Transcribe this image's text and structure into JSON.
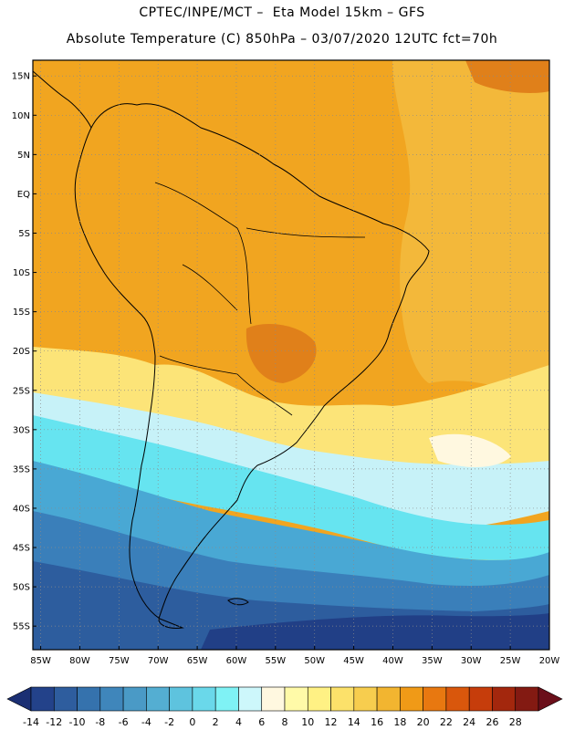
{
  "title": {
    "line1": "CPTEC/INPE/MCT –  Eta Model 15km – GFS",
    "line2": "Absolute Temperature (C) 850hPa – 03/07/2020 12UTC fct=70h"
  },
  "map": {
    "lon_range": [
      -86,
      -20
    ],
    "lat_range": [
      -58,
      17
    ],
    "lat_ticks": [
      {
        "value": 15,
        "label": "15N"
      },
      {
        "value": 10,
        "label": "10N"
      },
      {
        "value": 5,
        "label": "5N"
      },
      {
        "value": 0,
        "label": "EQ"
      },
      {
        "value": -5,
        "label": "5S"
      },
      {
        "value": -10,
        "label": "10S"
      },
      {
        "value": -15,
        "label": "15S"
      },
      {
        "value": -20,
        "label": "20S"
      },
      {
        "value": -25,
        "label": "25S"
      },
      {
        "value": -30,
        "label": "30S"
      },
      {
        "value": -35,
        "label": "35S"
      },
      {
        "value": -40,
        "label": "40S"
      },
      {
        "value": -45,
        "label": "45S"
      },
      {
        "value": -50,
        "label": "50S"
      },
      {
        "value": -55,
        "label": "55S"
      }
    ],
    "lon_ticks": [
      {
        "value": -85,
        "label": "85W"
      },
      {
        "value": -80,
        "label": "80W"
      },
      {
        "value": -75,
        "label": "75W"
      },
      {
        "value": -70,
        "label": "70W"
      },
      {
        "value": -65,
        "label": "65W"
      },
      {
        "value": -60,
        "label": "60W"
      },
      {
        "value": -55,
        "label": "55W"
      },
      {
        "value": -50,
        "label": "50W"
      },
      {
        "value": -45,
        "label": "45W"
      },
      {
        "value": -40,
        "label": "40W"
      },
      {
        "value": -35,
        "label": "35W"
      },
      {
        "value": -30,
        "label": "30W"
      },
      {
        "value": -25,
        "label": "25W"
      },
      {
        "value": -20,
        "label": "20W"
      }
    ]
  },
  "colorbar": {
    "labels": [
      "-14",
      "-12",
      "-10",
      "-8",
      "-6",
      "-4",
      "-2",
      "0",
      "2",
      "4",
      "6",
      "8",
      "10",
      "12",
      "14",
      "16",
      "18",
      "20",
      "22",
      "24",
      "26",
      "28"
    ],
    "under_color": "#1b2f73",
    "over_color": "#6b0f1a",
    "colors": [
      "#23428a",
      "#2e5d9e",
      "#3572ad",
      "#3f86bb",
      "#4a9ac6",
      "#54aed2",
      "#5ec3de",
      "#6ad8ea",
      "#7ff2f5",
      "#cdf7fb",
      "#fff8e0",
      "#fffaa8",
      "#fff184",
      "#fce16a",
      "#f7cd4e",
      "#f2b530",
      "#f09a17",
      "#e87810",
      "#d9570c",
      "#c63d0b",
      "#a3270d",
      "#831a12"
    ]
  },
  "colors": {
    "trop_warm": "#f1a520",
    "trop_hot": "#e0801a",
    "warm": "#f3b83a",
    "mild": "#fce478",
    "cool": "#c7f2f8",
    "cyan": "#66e4f0",
    "blue1": "#49a8d4",
    "blue2": "#3a7fba",
    "blue3": "#2d5d9e",
    "deep": "#213f86"
  }
}
